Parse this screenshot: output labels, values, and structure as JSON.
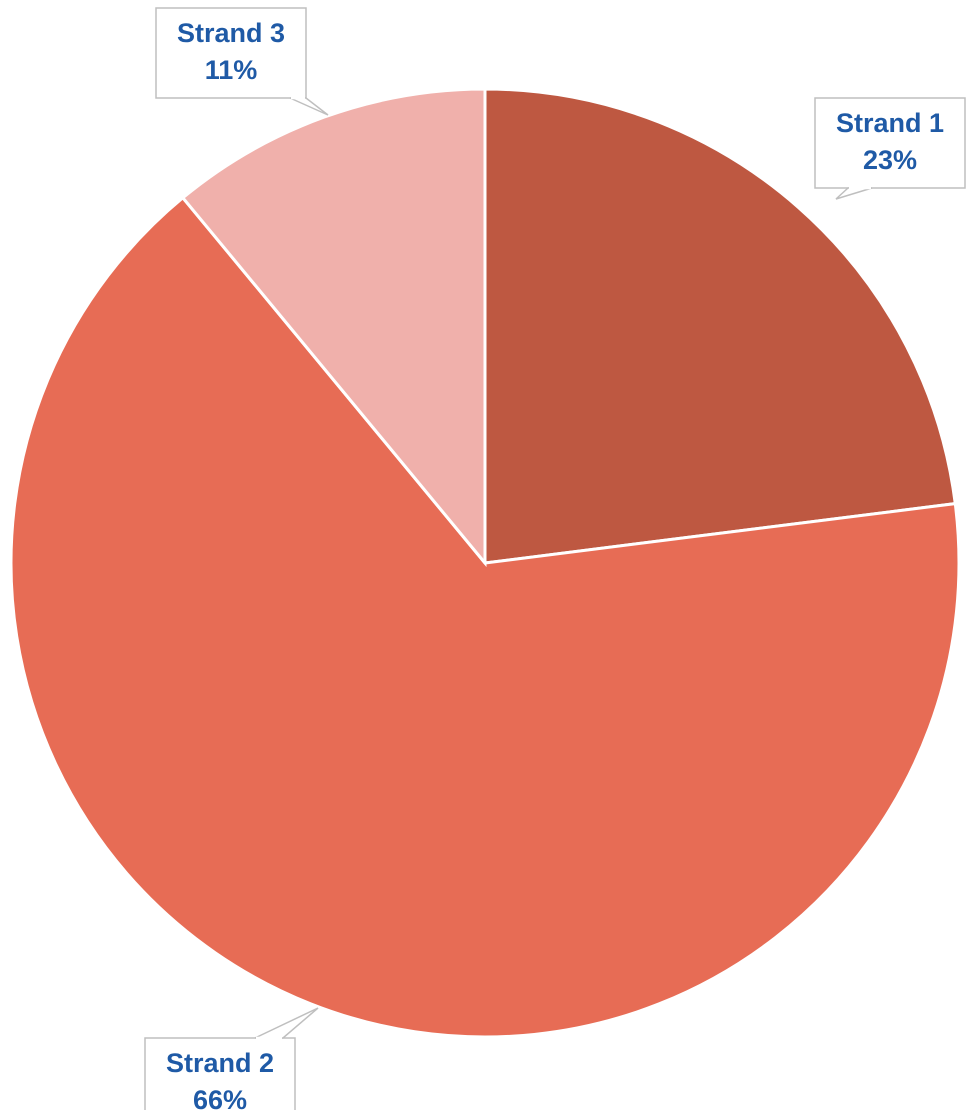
{
  "chart_data": {
    "type": "pie",
    "start_angle_deg": 0,
    "direction": "clockwise",
    "slices": [
      {
        "label": "Strand 1",
        "value": 23,
        "value_label": "23%",
        "color": "#be5841"
      },
      {
        "label": "Strand 2",
        "value": 66,
        "value_label": "66%",
        "color": "#e76c55"
      },
      {
        "label": "Strand 3",
        "value": 11,
        "value_label": "11%",
        "color": "#f0b0ab"
      }
    ],
    "title": "",
    "legend": "none",
    "data_labels": "callouts"
  }
}
